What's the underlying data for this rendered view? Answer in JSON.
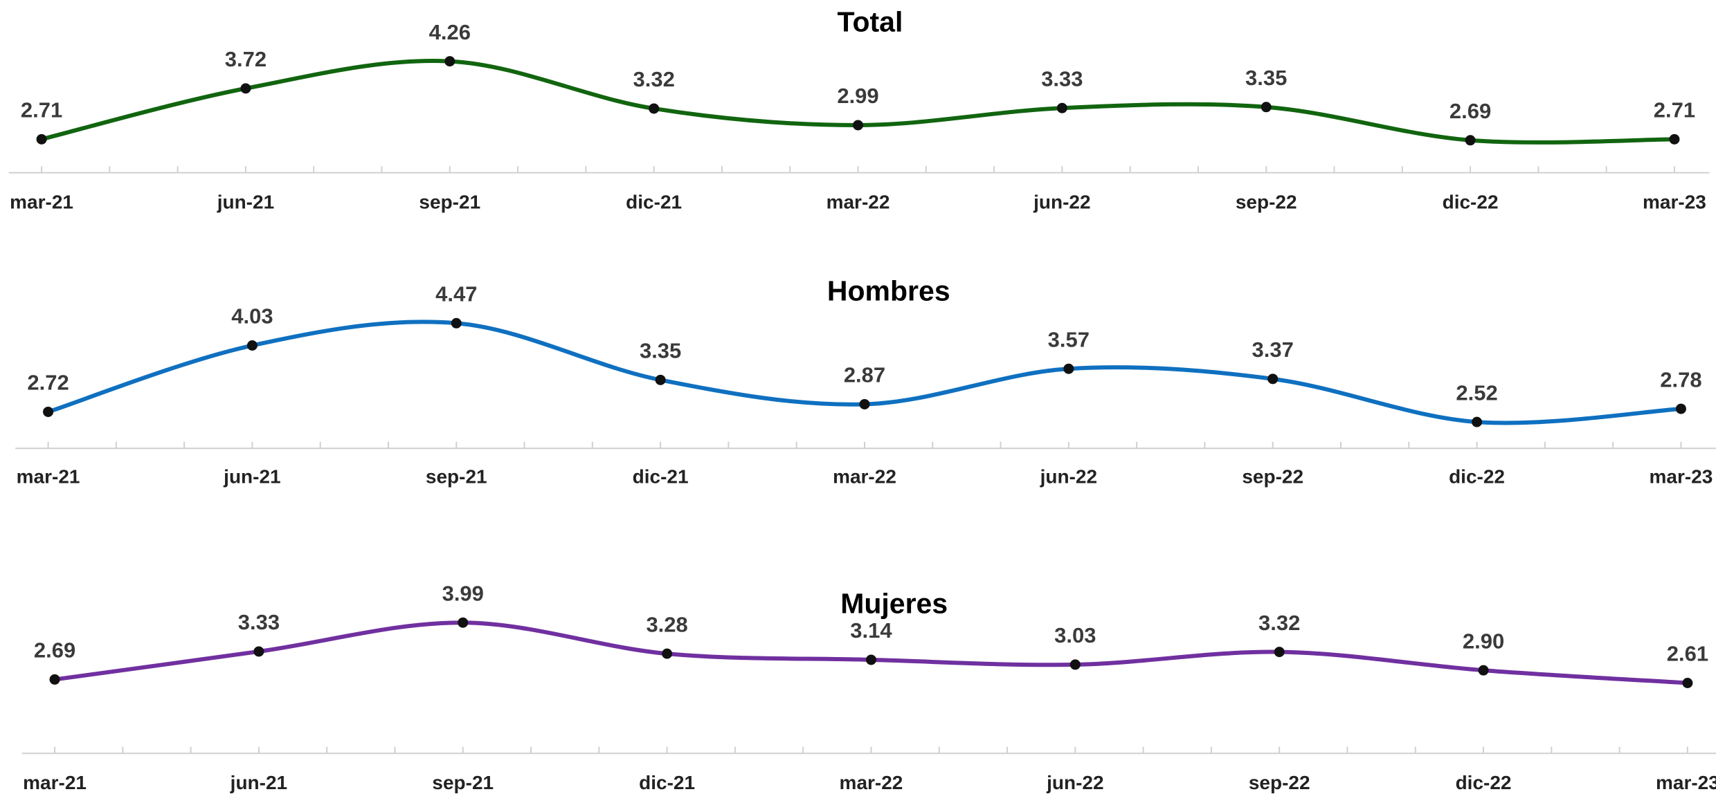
{
  "chart_data": [
    {
      "type": "line",
      "title": "Total",
      "categories": [
        "mar-21",
        "jun-21",
        "sep-21",
        "dic-21",
        "mar-22",
        "jun-22",
        "sep-22",
        "dic-22",
        "mar-23"
      ],
      "values": [
        2.71,
        3.72,
        4.26,
        3.32,
        2.99,
        3.33,
        3.35,
        2.69,
        2.71
      ],
      "value_labels": [
        "2.71",
        "3.72",
        "4.26",
        "3.32",
        "2.99",
        "3.33",
        "3.35",
        "2.69",
        "2.71"
      ],
      "color": "#11650f",
      "ylim": [
        2,
        5
      ]
    },
    {
      "type": "line",
      "title": "Hombres",
      "categories": [
        "mar-21",
        "jun-21",
        "sep-21",
        "dic-21",
        "mar-22",
        "jun-22",
        "sep-22",
        "dic-22",
        "mar-23"
      ],
      "values": [
        2.72,
        4.03,
        4.47,
        3.35,
        2.87,
        3.57,
        3.37,
        2.52,
        2.78
      ],
      "value_labels": [
        "2.72",
        "4.03",
        "4.47",
        "3.35",
        "2.87",
        "3.57",
        "3.37",
        "2.52",
        "2.78"
      ],
      "color": "#0f70c0",
      "ylim": [
        2,
        5
      ]
    },
    {
      "type": "line",
      "title": "Mujeres",
      "categories": [
        "mar-21",
        "jun-21",
        "sep-21",
        "dic-21",
        "mar-22",
        "jun-22",
        "sep-22",
        "dic-22",
        "mar-23"
      ],
      "values": [
        2.69,
        3.33,
        3.99,
        3.28,
        3.14,
        3.03,
        3.32,
        2.9,
        2.61
      ],
      "value_labels": [
        "2.69",
        "3.33",
        "3.99",
        "3.28",
        "3.14",
        "3.03",
        "3.32",
        "2.90",
        "2.61"
      ],
      "color": "#7030a0",
      "ylim": [
        1,
        4.5
      ]
    }
  ]
}
